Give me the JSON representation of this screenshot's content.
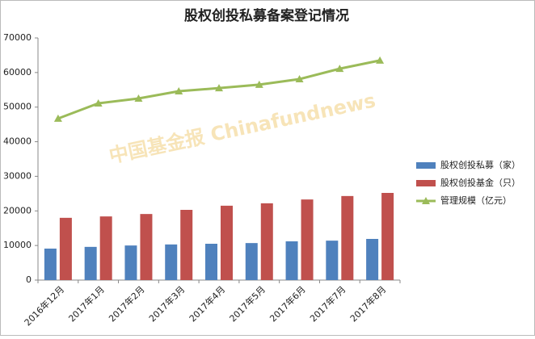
{
  "chart_data": {
    "type": "bar",
    "title": "股权创投私募备案登记情况",
    "watermark": "中国基金报 Chinafundnews",
    "categories": [
      "2016年12月",
      "2017年1月",
      "2017年2月",
      "2017年3月",
      "2017年4月",
      "2017年5月",
      "2017年6月",
      "2017年7月",
      "2017年8月"
    ],
    "series": [
      {
        "name": "股权创投私募（家）",
        "type": "bar",
        "color": "#4f81bd",
        "values": [
          9100,
          9600,
          10000,
          10300,
          10500,
          10700,
          11200,
          11400,
          11900
        ]
      },
      {
        "name": "股权创投基金（只）",
        "type": "bar",
        "color": "#c0504d",
        "values": [
          18000,
          18400,
          19100,
          20300,
          21500,
          22200,
          23300,
          24300,
          25200
        ]
      },
      {
        "name": "管理规模（亿元）",
        "type": "line",
        "color": "#9bbb59",
        "values": [
          46700,
          51100,
          52500,
          54600,
          55500,
          56500,
          58100,
          61100,
          63500
        ]
      }
    ],
    "ylim": [
      0,
      70000
    ],
    "yticks": [
      0,
      10000,
      20000,
      30000,
      40000,
      50000,
      60000,
      70000
    ],
    "grid": false,
    "legend": "right"
  }
}
